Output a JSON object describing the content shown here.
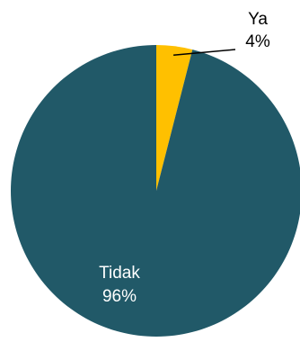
{
  "chart_data": {
    "type": "pie",
    "title": "",
    "slices": [
      {
        "label": "Ya",
        "value": 4,
        "value_label": "4%",
        "color": "#FFC000",
        "label_color": "#000000"
      },
      {
        "label": "Tidak",
        "value": 96,
        "value_label": "96%",
        "color": "#215968",
        "label_color": "#FFFFFF"
      }
    ],
    "start_angle_deg": 0,
    "direction": "clockwise",
    "legend": "none"
  }
}
